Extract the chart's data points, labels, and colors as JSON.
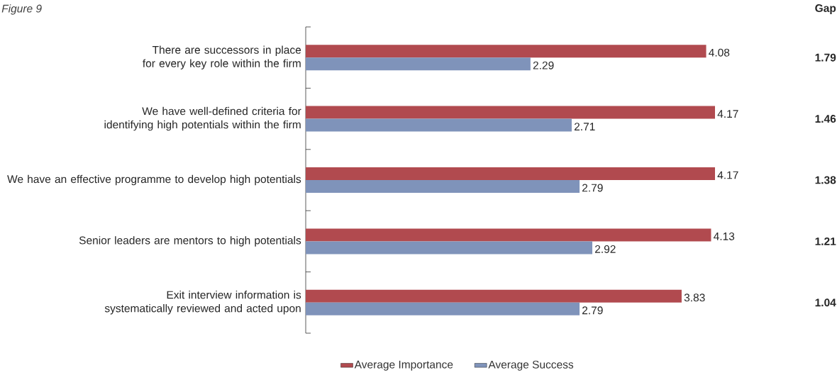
{
  "chart_data": {
    "type": "bar",
    "orientation": "horizontal",
    "title": "Figure 9",
    "categories": [
      "There are successors in place for every key role within the firm",
      "We have well-defined criteria for identifying high potentials within the firm",
      "We have an effective programme to develop high potentials",
      "Senior leaders are mentors to high potentials",
      "Exit interview information is systematically reviewed and acted upon"
    ],
    "series": [
      {
        "name": "Average Importance",
        "color": "#b14a4f",
        "values": [
          4.08,
          4.17,
          4.17,
          4.13,
          3.83
        ]
      },
      {
        "name": "Average Success",
        "color": "#7f93ba",
        "values": [
          2.29,
          2.71,
          2.79,
          2.92,
          2.79
        ]
      }
    ],
    "annotations": [
      "Gap",
      "1.79",
      "1.46",
      "1.38",
      "1.21",
      "1.04"
    ],
    "data_labels": true,
    "legend": "bottom",
    "tick_labels": "y"
  }
}
